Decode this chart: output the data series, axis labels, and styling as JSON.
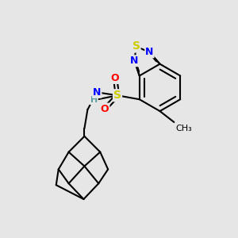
{
  "bg_color": "#e6e6e6",
  "atom_colors": {
    "S": "#cccc00",
    "N": "#0000ff",
    "O": "#ff0000",
    "C": "#000000",
    "default": "#000000"
  },
  "bond_color": "#000000",
  "bond_width": 1.5,
  "font_size": 9,
  "fig_size": [
    3.0,
    3.0
  ],
  "dpi": 100
}
